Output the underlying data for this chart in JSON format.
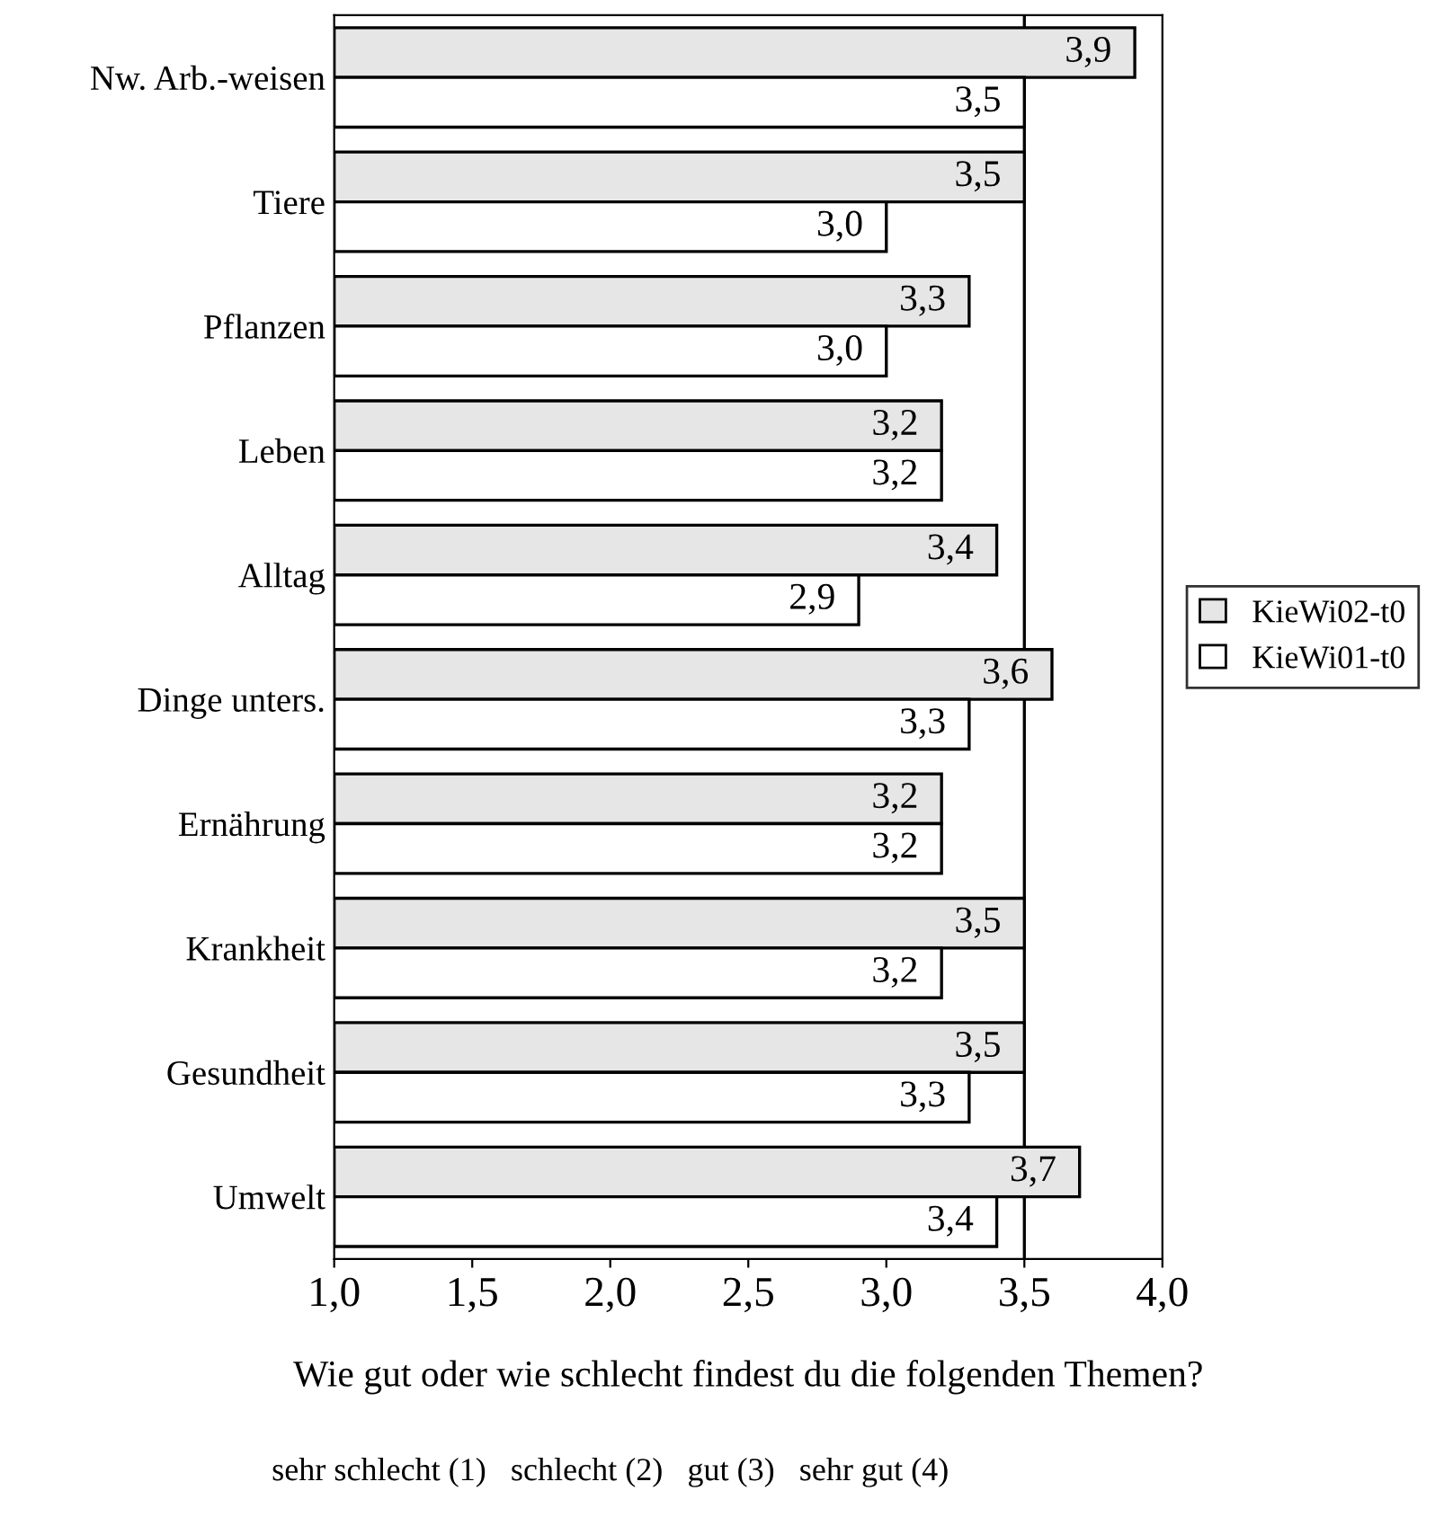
{
  "chart_data": {
    "type": "bar",
    "orientation": "horizontal",
    "xlabel": "Wie gut oder wie schlecht findest du die folgenden Themen?",
    "annotations": [
      "sehr schlecht (1)   schlecht (2)   gut (3)   sehr gut (4)"
    ],
    "categories": [
      "Nw. Arb.-weisen",
      "Tiere",
      "Pflanzen",
      "Leben",
      "Alltag",
      "Dinge unters.",
      "Ernährung",
      "Krankheit",
      "Gesundheit",
      "Umwelt"
    ],
    "series": [
      {
        "name": "KieWi02-t0",
        "color": "#e6e6e6",
        "values": [
          3.9,
          3.5,
          3.3,
          3.2,
          3.4,
          3.6,
          3.2,
          3.5,
          3.5,
          3.7
        ],
        "value_labels": [
          "3,9",
          "3,5",
          "3,3",
          "3,2",
          "3,4",
          "3,6",
          "3,2",
          "3,5",
          "3,5",
          "3,7"
        ]
      },
      {
        "name": "KieWi01-t0",
        "color": "#ffffff",
        "values": [
          3.5,
          3.0,
          3.0,
          3.2,
          2.9,
          3.3,
          3.2,
          3.2,
          3.3,
          3.4
        ],
        "value_labels": [
          "3,5",
          "3,0",
          "3,0",
          "3,2",
          "2,9",
          "3,3",
          "3,2",
          "3,2",
          "3,3",
          "3,4"
        ]
      }
    ],
    "xlim": [
      1,
      4
    ],
    "xticks": [
      {
        "value": 1,
        "label": "1,0"
      },
      {
        "value": 1.5,
        "label": "1,5"
      },
      {
        "value": 2,
        "label": "2,0"
      },
      {
        "value": 2.5,
        "label": "2,5"
      },
      {
        "value": 3,
        "label": "3,0"
      },
      {
        "value": 3.5,
        "label": "3,5"
      },
      {
        "value": 4,
        "label": "4,0"
      }
    ],
    "ref_lines": [
      {
        "axis": "x",
        "value": 3.5,
        "color": "#000000"
      }
    ],
    "grid": false,
    "legend": "right"
  }
}
